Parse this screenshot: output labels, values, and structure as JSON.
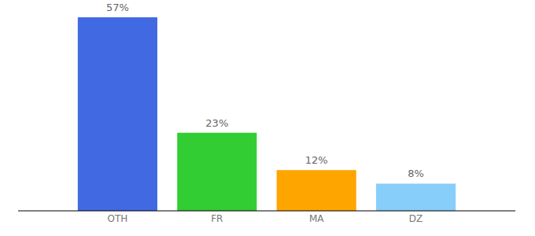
{
  "chart_data": {
    "type": "bar",
    "categories": [
      "OTH",
      "FR",
      "MA",
      "DZ"
    ],
    "values": [
      57,
      23,
      12,
      8
    ],
    "value_labels": [
      "57%",
      "23%",
      "12%",
      "8%"
    ],
    "colors": [
      "#4169e1",
      "#32cd32",
      "#ffa500",
      "#87cefa"
    ],
    "ylim": [
      0,
      57
    ],
    "grid": false,
    "data_labels": true,
    "tick_labels": "x"
  }
}
